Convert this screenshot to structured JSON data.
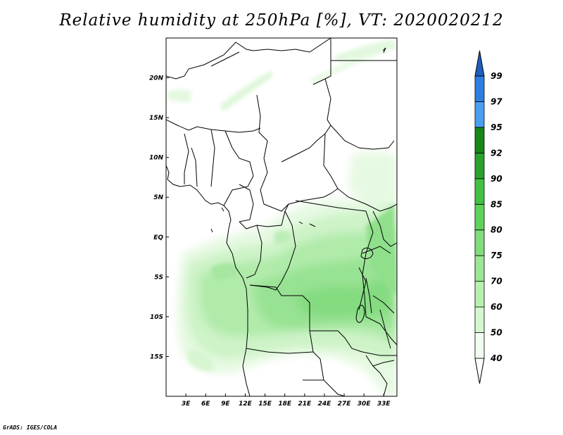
{
  "title": "Relative humidity at 250hPa [%], VT: 2020020212",
  "footer": "GrADS: IGES/COLA",
  "map": {
    "lon_range": [
      0,
      35
    ],
    "lat_range": [
      -20,
      25
    ],
    "lon_ticks": [
      "3E",
      "6E",
      "9E",
      "12E",
      "15E",
      "18E",
      "21E",
      "24E",
      "27E",
      "30E",
      "33E"
    ],
    "lat_ticks": [
      "20N",
      "15N",
      "10N",
      "5N",
      "EQ",
      "5S",
      "10S",
      "15S"
    ]
  },
  "colorbar": {
    "levels": [
      "40",
      "50",
      "60",
      "70",
      "75",
      "80",
      "85",
      "90",
      "92",
      "95",
      "97",
      "99"
    ],
    "colors": [
      "#f0fdf0",
      "#d4f7d0",
      "#b8f0b0",
      "#9ce695",
      "#80dd7a",
      "#5ed35b",
      "#43c143",
      "#2aa12a",
      "#178717",
      "#4a9ff0",
      "#2c7fe0",
      "#1e5fc0"
    ],
    "extend_high_color": "#1e5fc0"
  }
}
